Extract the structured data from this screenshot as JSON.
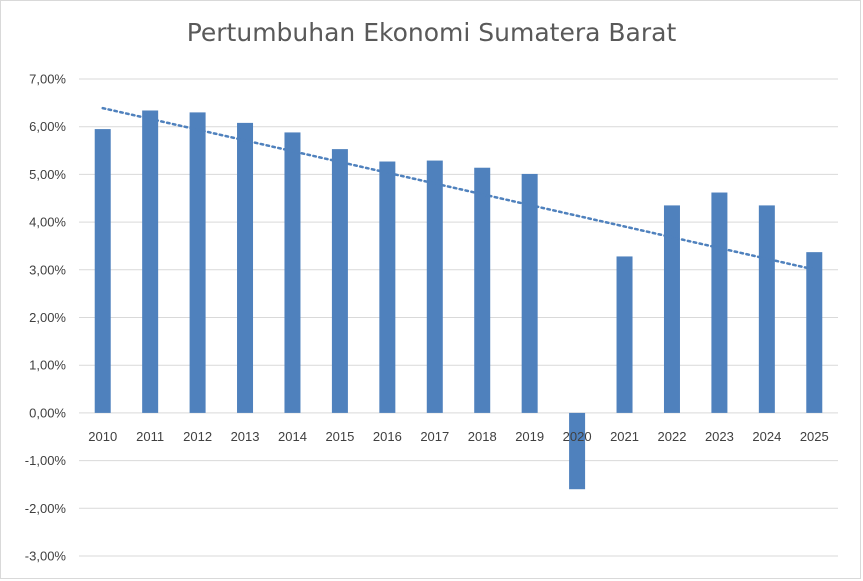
{
  "chart_data": {
    "type": "bar",
    "title": "Pertumbuhan Ekonomi Sumatera Barat",
    "xlabel": "",
    "ylabel": "",
    "categories": [
      "2010",
      "2011",
      "2012",
      "2013",
      "2014",
      "2015",
      "2016",
      "2017",
      "2018",
      "2019",
      "2020",
      "2021",
      "2022",
      "2023",
      "2024",
      "2025"
    ],
    "series": [
      {
        "values": [
          5.95,
          6.34,
          6.3,
          6.08,
          5.88,
          5.53,
          5.27,
          5.29,
          5.14,
          5.01,
          -1.6,
          3.28,
          4.35,
          4.62,
          4.35,
          3.37
        ],
        "color": "#4f81bd"
      }
    ],
    "trendline": {
      "type": "linear",
      "style": "dotted",
      "color": "#4f81bd"
    },
    "ylim": [
      -3,
      7
    ],
    "yticks": [
      7,
      6,
      5,
      4,
      3,
      2,
      1,
      0,
      -1,
      -2,
      -3
    ],
    "ytick_labels": [
      "7,00%",
      "6,00%",
      "5,00%",
      "4,00%",
      "3,00%",
      "2,00%",
      "1,00%",
      "0,00%",
      "-1,00%",
      "-2,00%",
      "-3,00%"
    ],
    "grid": true,
    "legend": "none"
  }
}
